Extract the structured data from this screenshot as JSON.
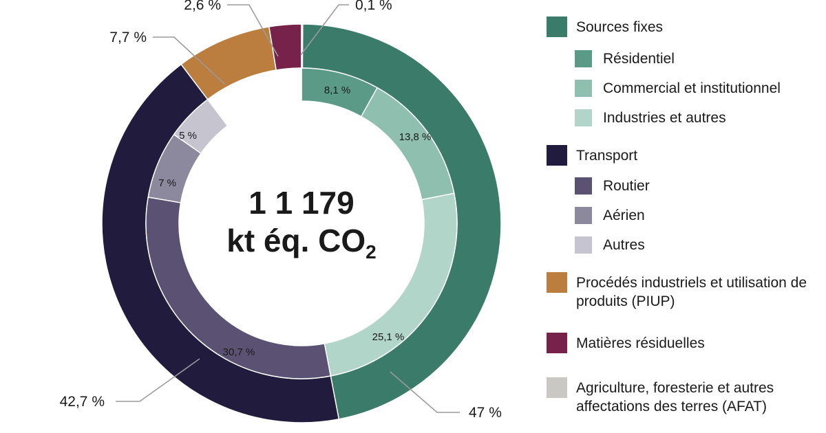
{
  "chart_data": {
    "type": "donut",
    "center": {
      "line1": "1 1 179",
      "line2": "kt éq. CO",
      "subscript": "2"
    },
    "outer_ring": [
      {
        "key": "sources_fixes",
        "value": 47.0,
        "label": "47 %",
        "color": "#3b7b69"
      },
      {
        "key": "transport",
        "value": 42.7,
        "label": "42,7 %",
        "color": "#211c3d"
      },
      {
        "key": "piup",
        "value": 7.7,
        "label": "7,7 %",
        "color": "#bb7e3e"
      },
      {
        "key": "matieres",
        "value": 2.6,
        "label": "2,6 %",
        "color": "#76224b"
      },
      {
        "key": "afat",
        "value": 0.1,
        "label": "0,1 %",
        "color": "#c9c8c3"
      }
    ],
    "inner_ring": [
      {
        "key": "residentiel",
        "value": 8.1,
        "label": "8,1 %",
        "color": "#5a9a87"
      },
      {
        "key": "commercial",
        "value": 13.8,
        "label": "13,8 %",
        "color": "#8fbfae"
      },
      {
        "key": "industries",
        "value": 25.1,
        "label": "25,1 %",
        "color": "#b2d5c9"
      },
      {
        "key": "routier",
        "value": 30.7,
        "label": "30,7 %",
        "color": "#5a5173"
      },
      {
        "key": "aerien",
        "value": 7.0,
        "label": "7 %",
        "color": "#8c889d"
      },
      {
        "key": "autres_transport",
        "value": 5.0,
        "label": "5 %",
        "color": "#c6c4cf"
      },
      {
        "key": "gap",
        "value": 10.3,
        "label": "",
        "color": "#ffffff"
      }
    ],
    "legend": [
      {
        "label": "Sources fixes",
        "color": "#3b7b69",
        "level": "main"
      },
      {
        "label": "Résidentiel",
        "color": "#5a9a87",
        "level": "sub"
      },
      {
        "label": "Commercial et institutionnel",
        "color": "#8fbfae",
        "level": "sub"
      },
      {
        "label": "Industries et autres",
        "color": "#b2d5c9",
        "level": "sub"
      },
      {
        "label": "Transport",
        "color": "#211c3d",
        "level": "main"
      },
      {
        "label": "Routier",
        "color": "#5a5173",
        "level": "sub"
      },
      {
        "label": "Aérien",
        "color": "#8c889d",
        "level": "sub"
      },
      {
        "label": "Autres",
        "color": "#c6c4cf",
        "level": "sub"
      },
      {
        "label": "Procédés industriels et utilisation de produits (PIUP)",
        "color": "#bb7e3e",
        "level": "main"
      },
      {
        "label": "Matières résiduelles",
        "color": "#76224b",
        "level": "main"
      },
      {
        "label": "Agriculture, foresterie et autres affectations des terres (AFAT)",
        "color": "#c9c8c3",
        "level": "main"
      }
    ]
  }
}
